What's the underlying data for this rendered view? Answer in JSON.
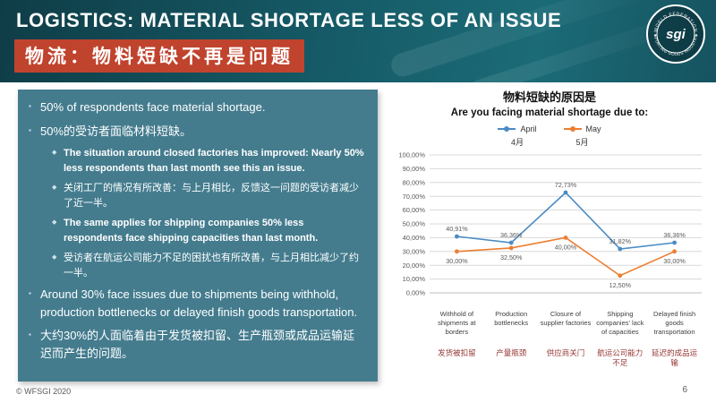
{
  "slide": {
    "title": "LOGISTICS: MATERIAL SHORTAGE LESS OF AN ISSUE",
    "subtitle_zh": "物流：物料短缺不再是问题",
    "logo": {
      "text": "sgi",
      "ring_top": "WORLD FEDERATION",
      "ring_bottom": "SPORTING GOODS INDUSTRY"
    },
    "footer": {
      "copyright": "© WFSGI 2020",
      "page": "6"
    }
  },
  "bullets": [
    {
      "level": 1,
      "bold": false,
      "text": "50% of respondents face material shortage."
    },
    {
      "level": 1,
      "bold": false,
      "text": "50%的受访者面临材料短缺。"
    },
    {
      "level": 2,
      "bold": true,
      "text": "The situation around closed factories has improved: Nearly 50% less respondents than last month see this an issue."
    },
    {
      "level": 2,
      "bold": false,
      "text": "关闭工厂的情况有所改善：与上月相比，反馈这一问题的受访者减少了近一半。"
    },
    {
      "level": 2,
      "bold": true,
      "text": "The same applies for shipping companies 50% less respondents face shipping capacities than last month."
    },
    {
      "level": 2,
      "bold": false,
      "text": "受访者在航运公司能力不足的困扰也有所改善，与上月相比减少了约一半。"
    },
    {
      "level": 1,
      "bold": false,
      "text": "Around 30% face issues due to shipments being withhold, production bottlenecks or delayed finish goods transportation."
    },
    {
      "level": 1,
      "bold": false,
      "text": "大约30%的人面临着由于发货被扣留、生产瓶颈或成品运输延迟而产生的问题。"
    }
  ],
  "chart_data": {
    "type": "line",
    "title_zh": "物料短缺的原因是",
    "title_en": "Are you facing material shortage due to:",
    "legend": [
      {
        "name": "April",
        "name_zh": "4月",
        "color": "#4a8bc4"
      },
      {
        "name": "May",
        "name_zh": "5月",
        "color": "#ed7d31"
      }
    ],
    "categories": [
      "Withhold of shipments at borders",
      "Production bottlenecks",
      "Closure of supplier factories",
      "Shipping companies’ lack of capacities",
      "Delayed finish goods transportation"
    ],
    "categories_zh": [
      "发货被扣留",
      "产量瓶颈",
      "供应商关门",
      "航运公司能力不足",
      "延迟的成品运输"
    ],
    "series": [
      {
        "name": "April",
        "values": [
          40.91,
          36.36,
          72.73,
          31.82,
          36.36
        ],
        "labels": [
          "40,91%",
          "36,36%",
          "72,73%",
          "31,82%",
          "36,36%"
        ]
      },
      {
        "name": "May",
        "values": [
          30.0,
          32.5,
          40.0,
          12.5,
          30.0
        ],
        "labels": [
          "30,00%",
          "32,50%",
          "40,00%",
          "12,50%",
          "30,00%"
        ]
      }
    ],
    "y_ticks": [
      "100,00%",
      "90,00%",
      "80,00%",
      "70,00%",
      "60,00%",
      "50,00%",
      "40,00%",
      "30,00%",
      "20,00%",
      "10,00%",
      "0,00%"
    ],
    "ylim": [
      0,
      100
    ],
    "grid": true,
    "legend_position": "top"
  }
}
